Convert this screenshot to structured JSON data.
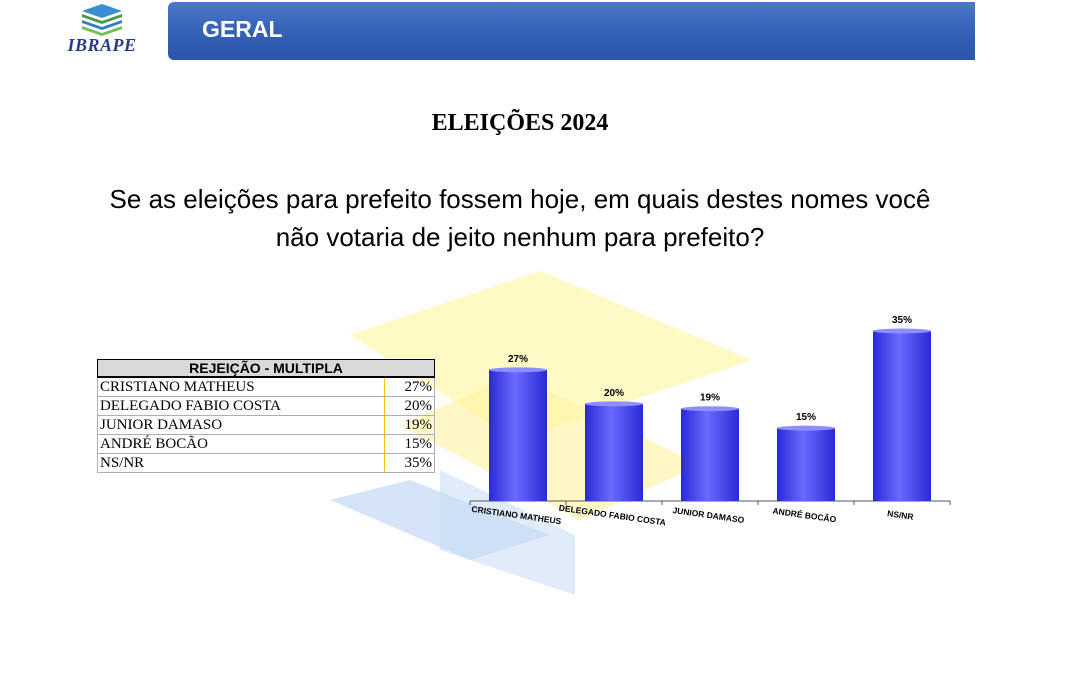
{
  "logo": {
    "text": "IBRAPE"
  },
  "header": {
    "title": "GERAL"
  },
  "title": "ELEIÇÕES 2024",
  "question": {
    "line1": "Se as eleições para prefeito fossem hoje, em quais destes nomes você",
    "line2": "não votaria de jeito nenhum para prefeito?"
  },
  "table": {
    "header": "REJEIÇÃO - MULTIPLA",
    "rows": [
      {
        "name": "CRISTIANO MATHEUS",
        "pct": "27%"
      },
      {
        "name": "DELEGADO FABIO COSTA",
        "pct": "20%"
      },
      {
        "name": "JUNIOR DAMASO",
        "pct": "19%"
      },
      {
        "name": "ANDRÉ BOCÃO",
        "pct": "15%"
      },
      {
        "name": "NS/NR",
        "pct": "35%"
      }
    ]
  },
  "colors": {
    "header_blue": "#3462b8",
    "bar_blue": "#3f3fe8",
    "logo_blue": "#2a3a8c"
  },
  "chart_data": {
    "type": "bar",
    "categories": [
      "CRISTIANO MATHEUS",
      "DELEGADO FABIO COSTA",
      "JUNIOR DAMASO",
      "ANDRÉ BOCÃO",
      "NS/NR"
    ],
    "values": [
      27,
      20,
      19,
      15,
      35
    ],
    "data_labels": [
      "27%",
      "20%",
      "19%",
      "15%",
      "35%"
    ],
    "title": "",
    "xlabel": "",
    "ylabel": "",
    "ylim": [
      0,
      35
    ],
    "grid": false,
    "legend": "none"
  }
}
